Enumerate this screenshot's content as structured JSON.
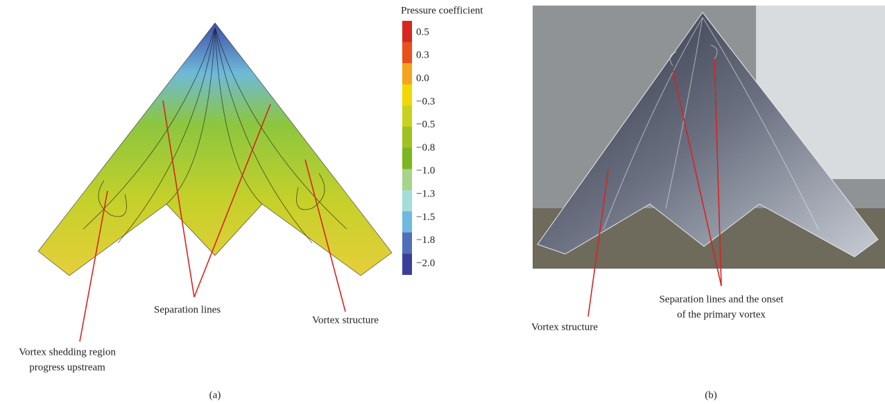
{
  "panel_a": {
    "colorbar": {
      "title": "Pressure coefficient",
      "labels": [
        "0.5",
        "0.3",
        "0.0",
        "−0.3",
        "−0.5",
        "−0.8",
        "−1.0",
        "−1.3",
        "−1.5",
        "−1.8",
        "−2.0"
      ]
    },
    "annotations": {
      "separation": "Separation lines",
      "vortex": "Vortex structure",
      "shedding": [
        "Vortex shedding region",
        "progress upstream"
      ]
    },
    "caption": "(a)"
  },
  "panel_b": {
    "annotations": {
      "vortex": "Vortex structure",
      "separation": [
        "Separation lines and the onset",
        "of the primary vortex"
      ]
    },
    "caption": "(b)"
  }
}
